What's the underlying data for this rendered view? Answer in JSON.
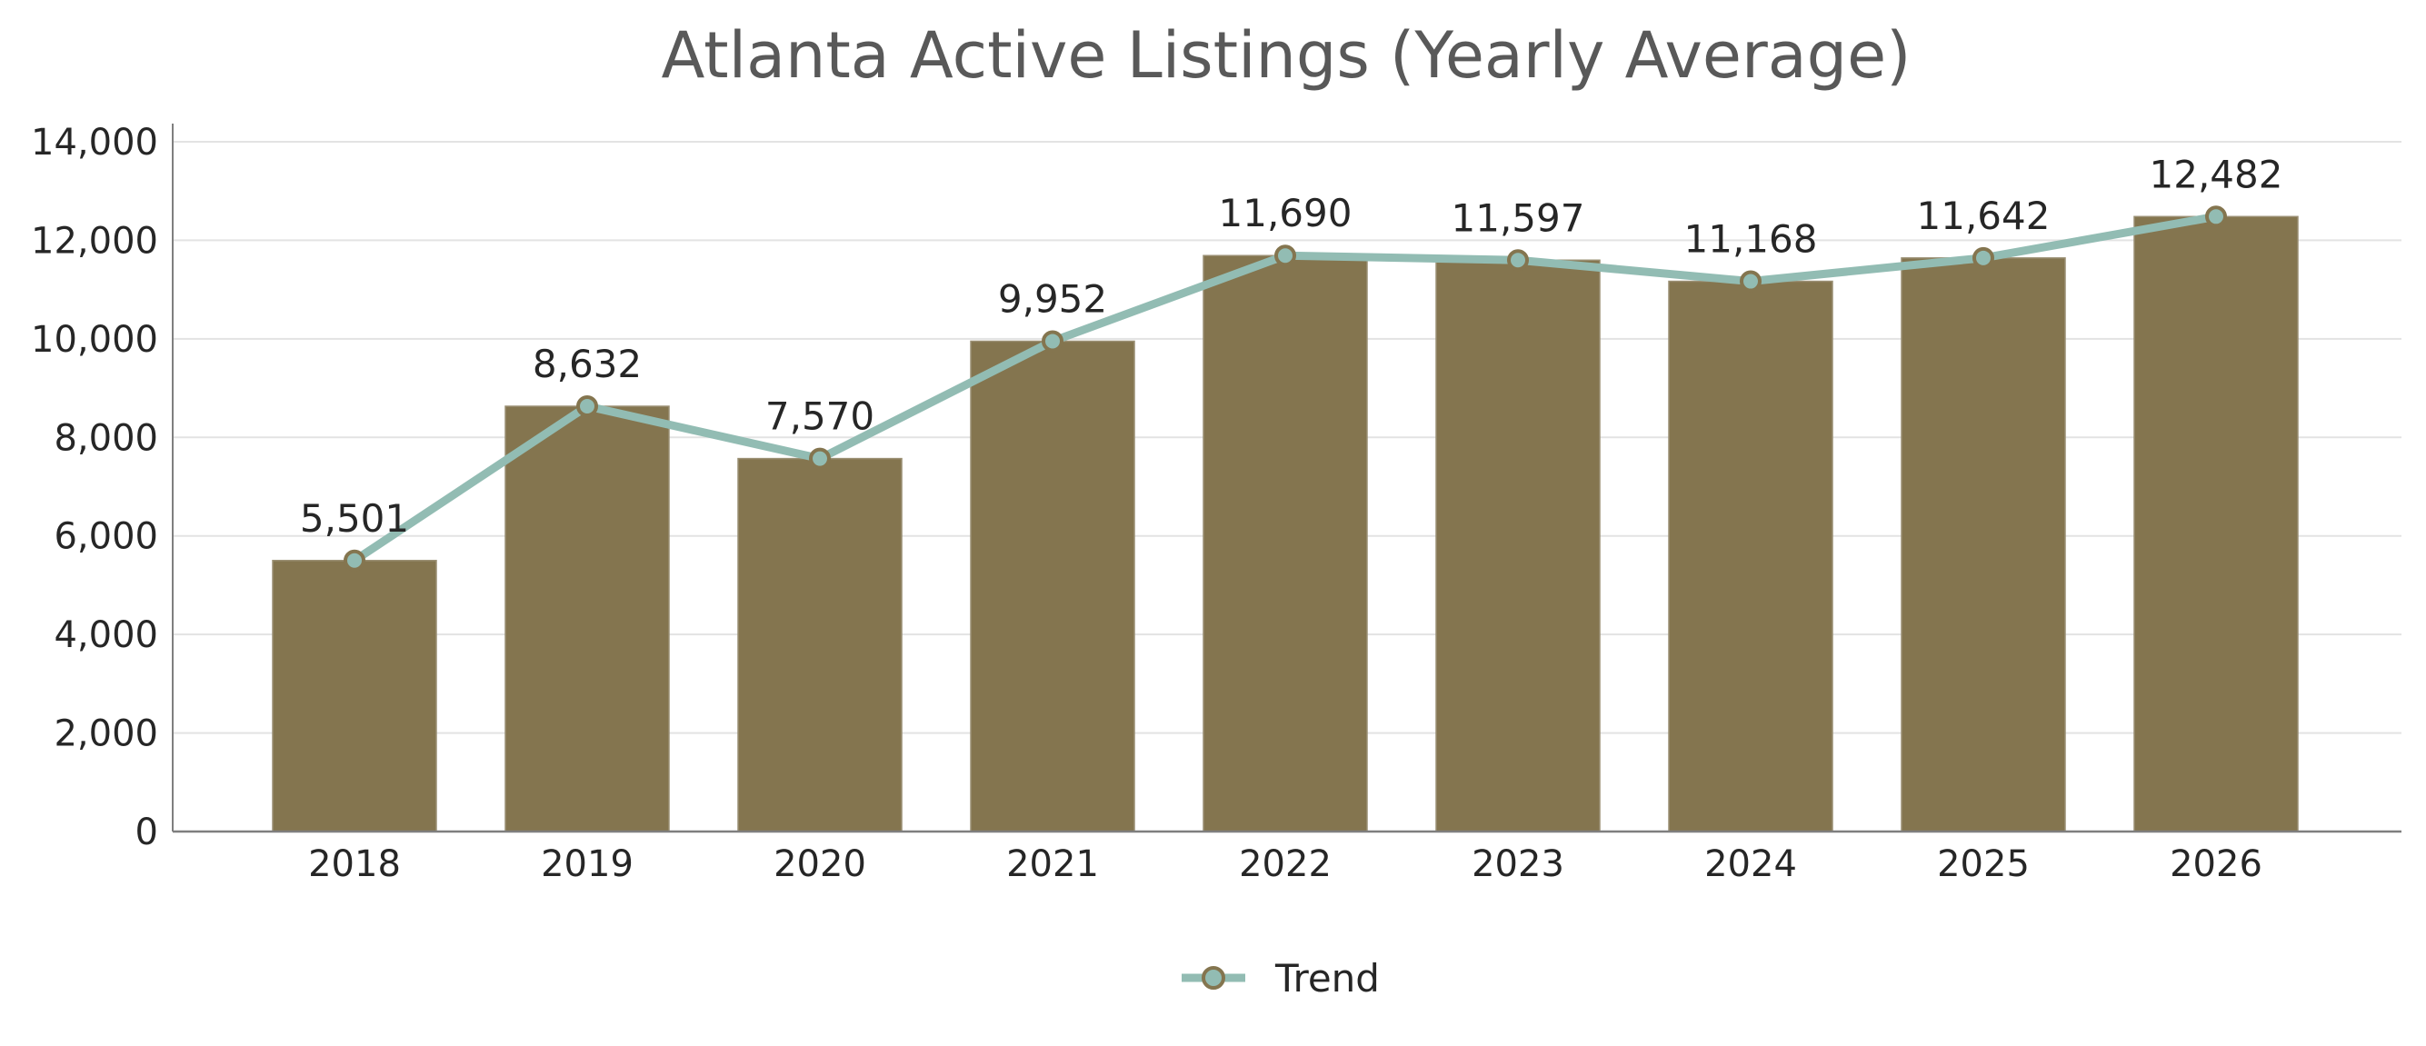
{
  "chart_data": {
    "type": "bar",
    "title": "Atlanta Active Listings (Yearly Average)",
    "xlabel": "",
    "ylabel": "",
    "categories": [
      "2018",
      "2019",
      "2020",
      "2021",
      "2022",
      "2023",
      "2024",
      "2025",
      "2026"
    ],
    "series": [
      {
        "type": "bar",
        "values": [
          5501,
          8632,
          7570,
          9952,
          11690,
          11597,
          11168,
          11642,
          12482
        ],
        "color": "#84754F"
      },
      {
        "name": "Trend",
        "type": "line",
        "values": [
          5501,
          8632,
          7570,
          9952,
          11690,
          11597,
          11168,
          11642,
          12482
        ],
        "color": "#92BCB3",
        "marker_edge_color": "#84754F"
      }
    ],
    "data_labels": [
      "5,501",
      "8,632",
      "7,570",
      "9,952",
      "11,690",
      "11,597",
      "11,168",
      "11,642",
      "12,482"
    ],
    "ylim": [
      0,
      14000
    ],
    "y_ticks": [
      0,
      2000,
      4000,
      6000,
      8000,
      10000,
      12000,
      14000
    ],
    "y_tick_labels": [
      "0",
      "2,000",
      "4,000",
      "6,000",
      "8,000",
      "10,000",
      "12,000",
      "14,000"
    ],
    "grid": "horizontal",
    "legend": {
      "position": "bottom-center",
      "entries": [
        "Trend"
      ]
    }
  }
}
